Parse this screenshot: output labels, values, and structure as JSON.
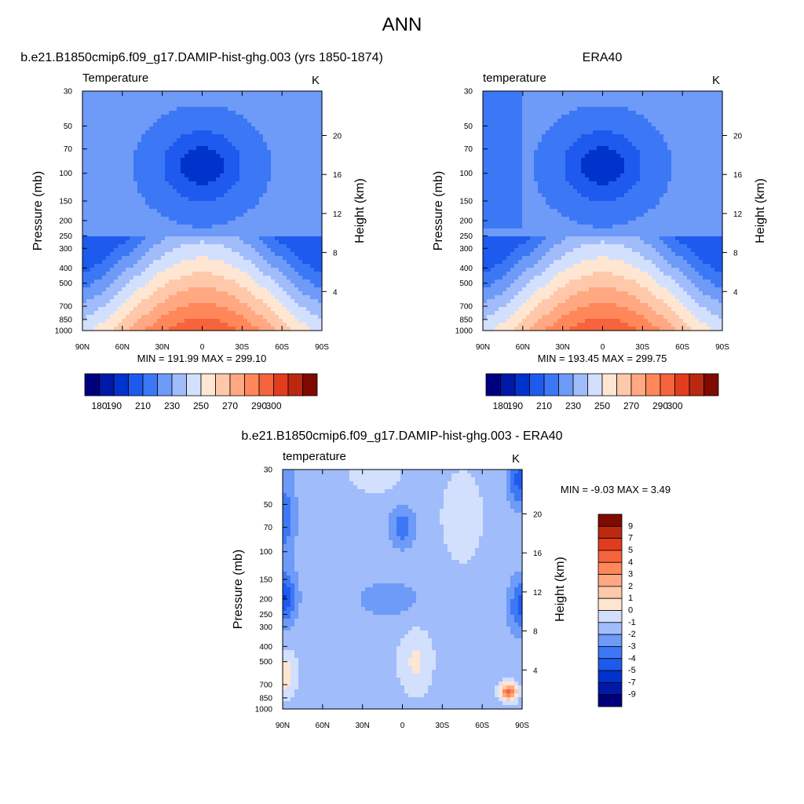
{
  "figure_title": "ANN",
  "colors": {
    "absolute_levels": [
      "#00007f",
      "#0019a6",
      "#0033cc",
      "#1e5aee",
      "#3c78f5",
      "#6e9af8",
      "#a0bcfb",
      "#d2e0fd",
      "#ffe6d2",
      "#ffc8aa",
      "#ffa882",
      "#ff875a",
      "#f5643c",
      "#e23c1e",
      "#bb2810",
      "#7f0a00"
    ],
    "difference_levels": [
      "#00007f",
      "#0019a6",
      "#0033cc",
      "#1e5aee",
      "#3c78f5",
      "#6e9af8",
      "#a0bcfb",
      "#d2e0fd",
      "#ffe6d2",
      "#ffc8aa",
      "#ffa882",
      "#ff875a",
      "#f5643c",
      "#e23c1e",
      "#bb2810",
      "#7f0a00"
    ]
  },
  "chart_data": [
    {
      "type": "heatmap",
      "title": "b.e21.B1850cmip6.f09_g17.DAMIP-hist-ghg.003 (yrs 1850-1874)",
      "subtitle_left": "Temperature",
      "subtitle_right": "K",
      "xlabel": "",
      "ylabel": "Pressure (mb)",
      "y2label": "Height (km)",
      "x_ticks": [
        "90N",
        "60N",
        "30N",
        "0",
        "30S",
        "60S",
        "90S"
      ],
      "y_ticks": [
        30,
        50,
        70,
        100,
        150,
        200,
        250,
        300,
        400,
        500,
        700,
        850,
        1000
      ],
      "y2_ticks": [
        20,
        16,
        12,
        8,
        4
      ],
      "y_scale": "log",
      "ylim": [
        1000,
        30
      ],
      "stats": "MIN = 191.99  MAX = 299.10",
      "min": 191.99,
      "max": 299.1,
      "colorbar_levels": [
        180,
        190,
        200,
        210,
        220,
        230,
        240,
        250,
        260,
        270,
        280,
        290,
        300,
        310,
        320
      ],
      "colorbar_labels": [
        "180",
        "190",
        "210",
        "230",
        "250",
        "270",
        "290",
        "300"
      ]
    },
    {
      "type": "heatmap",
      "title": "ERA40",
      "subtitle_left": "temperature",
      "subtitle_right": "K",
      "xlabel": "",
      "ylabel": "Pressure (mb)",
      "y2label": "Height (km)",
      "x_ticks": [
        "90N",
        "60N",
        "30N",
        "0",
        "30S",
        "60S",
        "90S"
      ],
      "y_ticks": [
        30,
        50,
        70,
        100,
        150,
        200,
        250,
        300,
        400,
        500,
        700,
        850,
        1000
      ],
      "y2_ticks": [
        20,
        16,
        12,
        8,
        4
      ],
      "y_scale": "log",
      "ylim": [
        1000,
        30
      ],
      "stats": "MIN = 193.45  MAX = 299.75",
      "min": 193.45,
      "max": 299.75,
      "colorbar_levels": [
        180,
        190,
        200,
        210,
        220,
        230,
        240,
        250,
        260,
        270,
        280,
        290,
        300,
        310,
        320
      ],
      "colorbar_labels": [
        "180",
        "190",
        "210",
        "230",
        "250",
        "270",
        "290",
        "300"
      ]
    },
    {
      "type": "heatmap",
      "title": "b.e21.B1850cmip6.f09_g17.DAMIP-hist-ghg.003 - ERA40",
      "subtitle_left": "temperature",
      "subtitle_right": "K",
      "xlabel": "",
      "ylabel": "Pressure (mb)",
      "y2label": "Height (km)",
      "x_ticks": [
        "90N",
        "60N",
        "30N",
        "0",
        "30S",
        "60S",
        "90S"
      ],
      "y_ticks": [
        30,
        50,
        70,
        100,
        150,
        200,
        250,
        300,
        400,
        500,
        700,
        850,
        1000
      ],
      "y2_ticks": [
        20,
        16,
        12,
        8,
        4
      ],
      "y_scale": "log",
      "ylim": [
        1000,
        30
      ],
      "stats": "MIN =  -9.03  MAX =   3.49",
      "min": -9.03,
      "max": 3.49,
      "colorbar_levels": [
        -9,
        -7,
        -5,
        -4,
        -3,
        -2,
        -1,
        0,
        1,
        2,
        3,
        4,
        5,
        7,
        9
      ],
      "colorbar_labels": [
        "9",
        "7",
        "5",
        "4",
        "3",
        "2",
        "1",
        "0",
        "-1",
        "-2",
        "-3",
        "-4",
        "-5",
        "-7",
        "-9"
      ],
      "colorbar_orientation": "vertical"
    }
  ]
}
